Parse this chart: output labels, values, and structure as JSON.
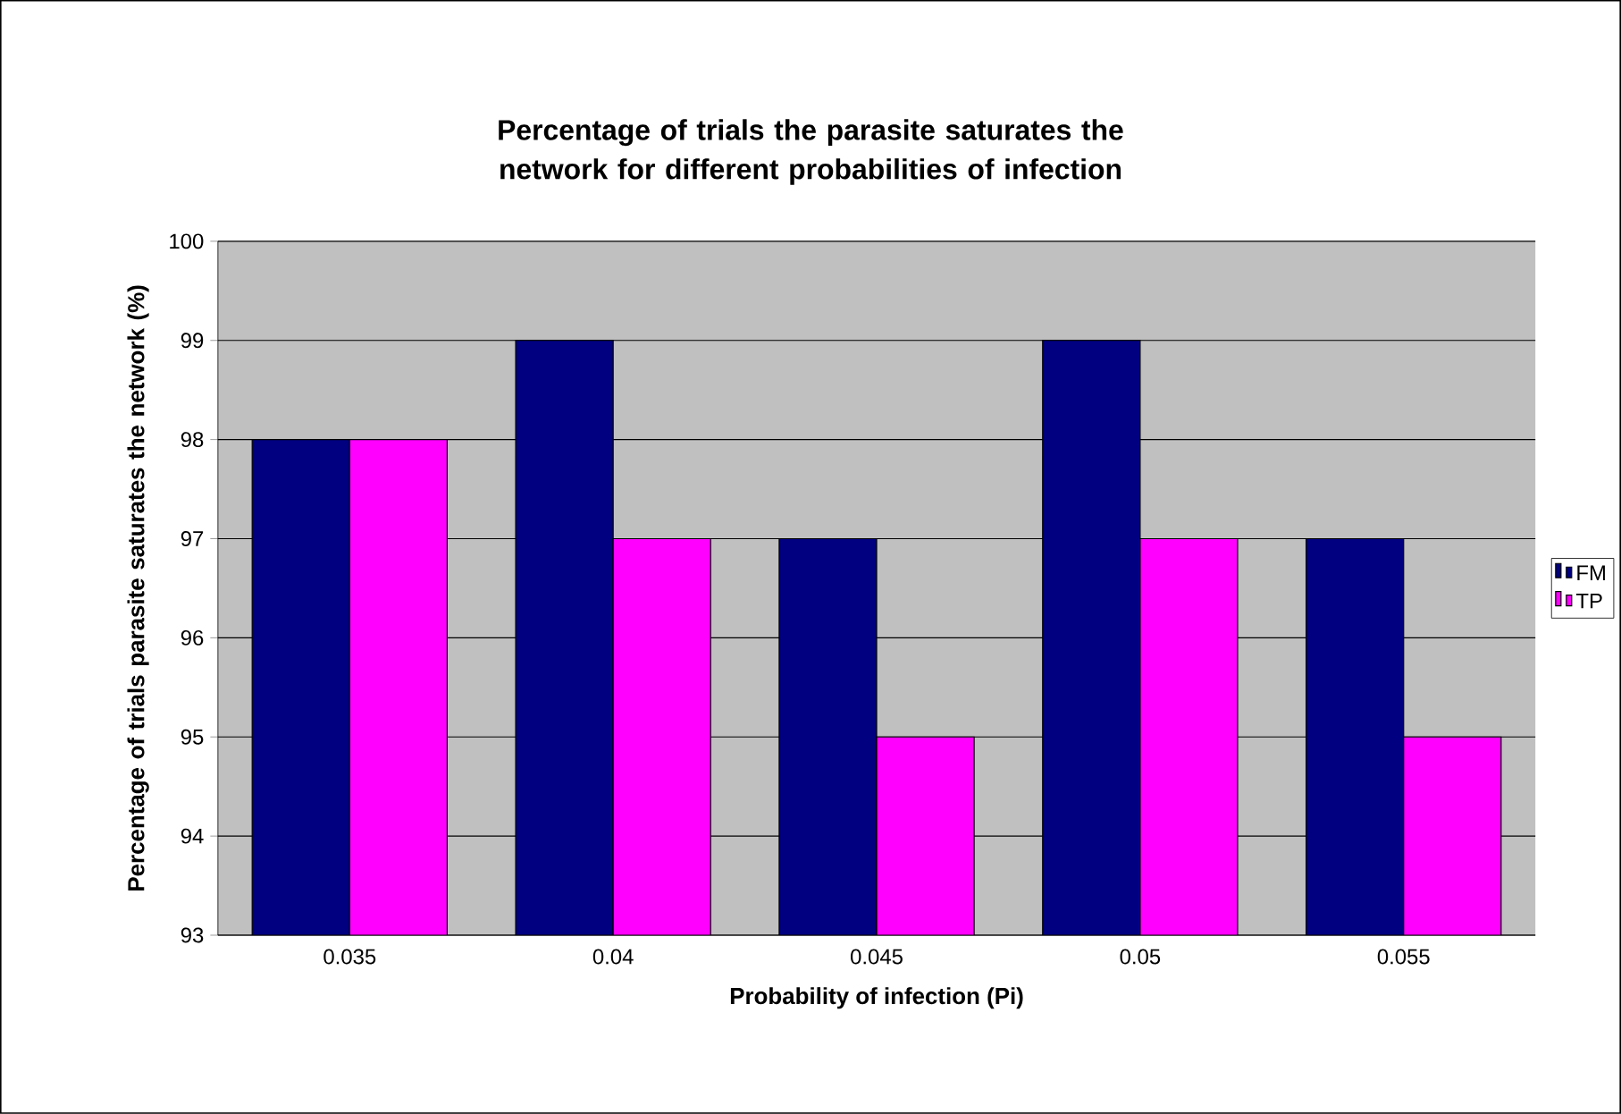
{
  "chart_data": {
    "type": "bar",
    "title": "Percentage of trials the parasite saturates the network for different probabilities of infection",
    "xlabel": "Probability of infection (Pi)",
    "ylabel": "Percentage of trials parasite saturates the network (%)",
    "categories": [
      "0.035",
      "0.04",
      "0.045",
      "0.05",
      "0.055"
    ],
    "series": [
      {
        "name": "FM",
        "color": "#000080",
        "values": [
          98,
          99,
          97,
          99,
          97
        ]
      },
      {
        "name": "TP",
        "color": "#ff00ff",
        "values": [
          98,
          97,
          95,
          97,
          95
        ]
      }
    ],
    "ylim": [
      93,
      100
    ],
    "yticks": [
      93,
      94,
      95,
      96,
      97,
      98,
      99,
      100
    ],
    "grid": "y",
    "legend": "right"
  }
}
